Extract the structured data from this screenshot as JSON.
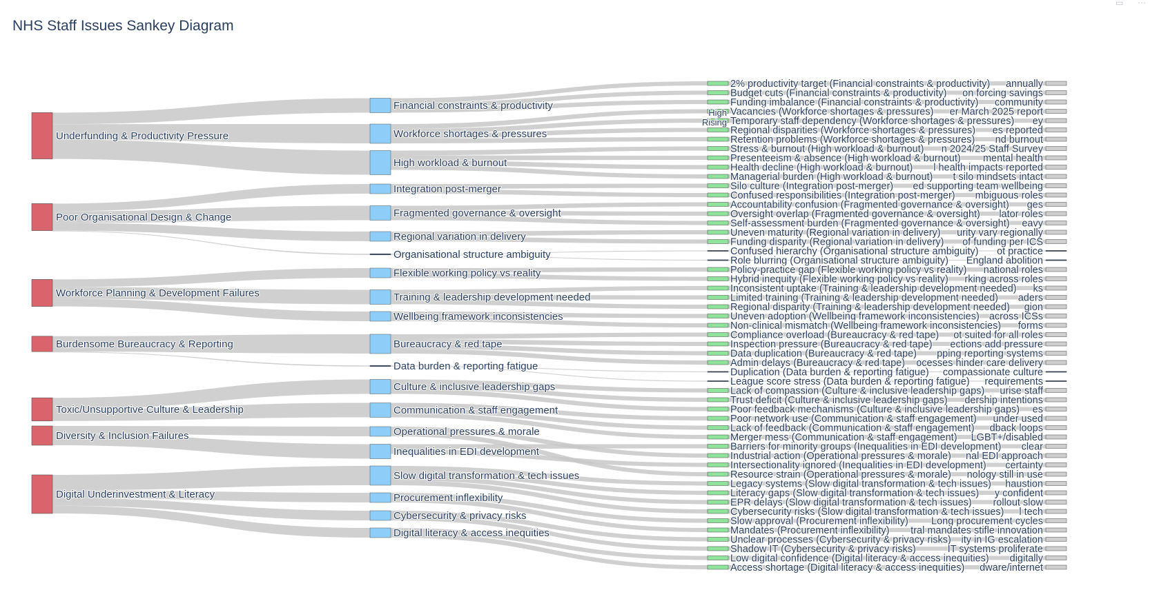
{
  "title": "NHS Staff Issues Sankey Diagram",
  "colors": {
    "root": "#d9646b",
    "category": "#8ecdf7",
    "leaf": "#8fe39a",
    "end": "#cfcfcf",
    "link": "#c8c8c8",
    "text": "#2a3f5f"
  },
  "toolbar": {
    "icons": [
      "zoom-icon",
      "more-icon"
    ]
  },
  "chart_data": {
    "type": "sankey",
    "roots": [
      {
        "id": "r1",
        "label": "Underfunding & Productivity Pressure"
      },
      {
        "id": "r2",
        "label": "Poor Organisational Design & Change"
      },
      {
        "id": "r3",
        "label": "Workforce Planning & Development Failures"
      },
      {
        "id": "r4",
        "label": "Burdensome Bureaucracy & Reporting"
      },
      {
        "id": "r5",
        "label": "Toxic/Unsupportive Culture & Leadership"
      },
      {
        "id": "r6",
        "label": "Diversity & Inclusion Failures"
      },
      {
        "id": "r7",
        "label": "Digital Underinvestment & Literacy"
      }
    ],
    "categories": [
      {
        "id": "c1",
        "label": "Financial constraints & productivity",
        "root": "r1",
        "value": 3
      },
      {
        "id": "c2",
        "label": "Workforce shortages & pressures",
        "root": "r1",
        "value": 4
      },
      {
        "id": "c3",
        "label": "High workload & burnout",
        "root": "r1",
        "value": 5
      },
      {
        "id": "c4",
        "label": "Integration post-merger",
        "root": "r2",
        "value": 2
      },
      {
        "id": "c5",
        "label": "Fragmented governance & oversight",
        "root": "r2",
        "value": 3
      },
      {
        "id": "c6",
        "label": "Regional variation in delivery",
        "root": "r2",
        "value": 2
      },
      {
        "id": "c7",
        "label": "Organisational structure ambiguity",
        "root": "r2",
        "value": 0
      },
      {
        "id": "c8",
        "label": "Flexible working policy vs reality",
        "root": "r3",
        "value": 2
      },
      {
        "id": "c9",
        "label": "Training & leadership development needed",
        "root": "r3",
        "value": 3
      },
      {
        "id": "c10",
        "label": "Wellbeing framework inconsistencies",
        "root": "r3",
        "value": 2
      },
      {
        "id": "c11",
        "label": "Bureaucracy & red tape",
        "root": "r4",
        "value": 4
      },
      {
        "id": "c12",
        "label": "Data burden & reporting fatigue",
        "root": "r4",
        "value": 0
      },
      {
        "id": "c13",
        "label": "Culture & inclusive leadership gaps",
        "root": "r5",
        "value": 3
      },
      {
        "id": "c14",
        "label": "Communication & staff engagement",
        "root": "r5",
        "value": 3
      },
      {
        "id": "c15",
        "label": "Operational pressures & morale",
        "root": "r6",
        "value": 2
      },
      {
        "id": "c16",
        "label": "Inequalities in EDI development",
        "root": "r6",
        "value": 3
      },
      {
        "id": "c17",
        "label": "Slow digital transformation & tech issues",
        "root": "r7",
        "value": 4
      },
      {
        "id": "c18",
        "label": "Procurement inflexibility",
        "root": "r7",
        "value": 2
      },
      {
        "id": "c19",
        "label": "Cybersecurity & privacy risks",
        "root": "r7",
        "value": 2
      },
      {
        "id": "c20",
        "label": "Digital literacy & access inequities",
        "root": "r7",
        "value": 2
      }
    ],
    "leaves": [
      {
        "label": "2% productivity target (Financial constraints & productivity)",
        "cat": "c1",
        "value": 1,
        "tail": "annually"
      },
      {
        "label": "Budget cuts (Financial constraints & productivity)",
        "cat": "c1",
        "value": 1,
        "tail": "on forcing savings"
      },
      {
        "label": "Funding imbalance (Financial constraints & productivity)",
        "cat": "c1",
        "value": 1,
        "tail": "community"
      },
      {
        "label": "Vacancies (Workforce shortages & pressures)",
        "cat": "c2",
        "value": 1,
        "tail": "er March 2025 report"
      },
      {
        "label": "Temporary staff dependency (Workforce shortages & pressures)",
        "cat": "c2",
        "value": 1,
        "tail": "ey"
      },
      {
        "label": "Regional disparities (Workforce shortages & pressures)",
        "cat": "c2",
        "value": 1,
        "tail": "es reported"
      },
      {
        "label": "Retention problems (Workforce shortages & pressures)",
        "cat": "c2",
        "value": 1,
        "tail": "nd burnout"
      },
      {
        "label": "Stress & burnout (High workload & burnout)",
        "cat": "c3",
        "value": 1,
        "tail": "n 2024/25 Staff Survey"
      },
      {
        "label": "Presenteeism & absence (High workload & burnout)",
        "cat": "c3",
        "value": 1,
        "tail": "mental health"
      },
      {
        "label": "Health decline (High workload & burnout)",
        "cat": "c3",
        "value": 1,
        "tail": "l health impacts reported"
      },
      {
        "label": "Managerial burden (High workload & burnout)",
        "cat": "c3",
        "value": 1,
        "tail": "t silo mindsets intact"
      },
      {
        "label": "Silo culture (Integration post-merger)",
        "cat": "c4",
        "value": 1,
        "tail": "ed supporting team wellbeing"
      },
      {
        "label": "Confused responsibilities (Integration post-merger)",
        "cat": "c4",
        "value": 1,
        "tail": "mbiguous roles"
      },
      {
        "label": "Accountability confusion (Fragmented governance & oversight)",
        "cat": "c5",
        "value": 1,
        "tail": "ges"
      },
      {
        "label": "Oversight overlap (Fragmented governance & oversight)",
        "cat": "c5",
        "value": 1,
        "tail": "lator roles"
      },
      {
        "label": "Self-assessment burden (Fragmented governance & oversight)",
        "cat": "c5",
        "value": 1,
        "tail": "eavy"
      },
      {
        "label": "Uneven maturity (Regional variation in delivery)",
        "cat": "c6",
        "value": 1,
        "tail": "urity vary regionally"
      },
      {
        "label": "Funding disparity (Regional variation in delivery)",
        "cat": "c6",
        "value": 1,
        "tail": "of funding per ICS"
      },
      {
        "label": "Confused hierarchy (Organisational structure ambiguity)",
        "cat": "c7",
        "value": 0,
        "tail": "ot practice"
      },
      {
        "label": "Role blurring (Organisational structure ambiguity)",
        "cat": "c7",
        "value": 0,
        "tail": "England abolition"
      },
      {
        "label": "Policy-practice gap (Flexible working policy vs reality)",
        "cat": "c8",
        "value": 1,
        "tail": "national roles"
      },
      {
        "label": "Hybrid inequity (Flexible working policy vs reality)",
        "cat": "c8",
        "value": 1,
        "tail": "rking across roles"
      },
      {
        "label": "Inconsistent uptake (Training & leadership development needed)",
        "cat": "c9",
        "value": 1,
        "tail": "ks"
      },
      {
        "label": "Limited training (Training & leadership development needed)",
        "cat": "c9",
        "value": 1,
        "tail": "aders"
      },
      {
        "label": "Regional disparity (Training & leadership development needed)",
        "cat": "c9",
        "value": 1,
        "tail": "gion"
      },
      {
        "label": "Uneven adoption (Wellbeing framework inconsistencies)",
        "cat": "c10",
        "value": 1,
        "tail": "across ICSs"
      },
      {
        "label": "Non-clinical mismatch (Wellbeing framework inconsistencies)",
        "cat": "c10",
        "value": 1,
        "tail": "forms"
      },
      {
        "label": "Compliance overload (Bureaucracy & red tape)",
        "cat": "c11",
        "value": 1,
        "tail": "ot suited for all roles"
      },
      {
        "label": "Inspection pressure (Bureaucracy & red tape)",
        "cat": "c11",
        "value": 1,
        "tail": "ections add pressure"
      },
      {
        "label": "Data duplication (Bureaucracy & red tape)",
        "cat": "c11",
        "value": 1,
        "tail": "pping reporting systems"
      },
      {
        "label": "Admin delays (Bureaucracy & red tape)",
        "cat": "c11",
        "value": 1,
        "tail": "ocesses hinder care delivery"
      },
      {
        "label": "Duplication (Data burden & reporting fatigue)",
        "cat": "c12",
        "value": 0,
        "tail": "compassionate culture"
      },
      {
        "label": "League score stress (Data burden & reporting fatigue)",
        "cat": "c12",
        "value": 0,
        "tail": "requirements"
      },
      {
        "label": "Lack of compassion (Culture & inclusive leadership gaps)",
        "cat": "c13",
        "value": 1,
        "tail": "urise staff"
      },
      {
        "label": "Trust deficit (Culture & inclusive leadership gaps)",
        "cat": "c13",
        "value": 1,
        "tail": "dership intentions"
      },
      {
        "label": "Poor feedback mechanisms (Culture & inclusive leadership gaps)",
        "cat": "c13",
        "value": 1,
        "tail": "es"
      },
      {
        "label": "Poor network use (Communication & staff engagement)",
        "cat": "c14",
        "value": 1,
        "tail": "under used"
      },
      {
        "label": "Lack of feedback (Communication & staff engagement)",
        "cat": "c14",
        "value": 1,
        "tail": "dback loops"
      },
      {
        "label": "Merger mess (Communication & staff engagement)",
        "cat": "c14",
        "value": 1,
        "tail": "LGBT+/disabled"
      },
      {
        "label": "Barriers for minority groups (Inequalities in EDI development)",
        "cat": "c16",
        "value": 1,
        "tail": "clear"
      },
      {
        "label": "Industrial action (Operational pressures & morale)",
        "cat": "c15",
        "value": 1,
        "tail": "nal EDI approach"
      },
      {
        "label": "Intersectionality ignored (Inequalities in EDI development)",
        "cat": "c16",
        "value": 1,
        "tail": "certainty"
      },
      {
        "label": "Resource strain (Operational pressures & morale)",
        "cat": "c15",
        "value": 1,
        "tail": "nology still in use"
      },
      {
        "label": "Legacy systems (Slow digital transformation & tech issues)",
        "cat": "c17",
        "value": 1,
        "tail": "haustion"
      },
      {
        "label": "Literacy gaps (Slow digital transformation & tech issues)",
        "cat": "c17",
        "value": 1,
        "tail": "y confident"
      },
      {
        "label": "EPR delays (Slow digital transformation & tech issues)",
        "cat": "c17",
        "value": 1,
        "tail": "rollout slow"
      },
      {
        "label": "Cybersecurity risks (Slow digital transformation & tech issues)",
        "cat": "c17",
        "value": 1,
        "tail": "l tech"
      },
      {
        "label": "Slow approval (Procurement inflexibility)",
        "cat": "c18",
        "value": 1,
        "tail": "Long procurement cycles"
      },
      {
        "label": "Mandates (Procurement inflexibility)",
        "cat": "c18",
        "value": 1,
        "tail": "tral mandates stifle innovation"
      },
      {
        "label": "Unclear processes (Cybersecurity & privacy risks)",
        "cat": "c19",
        "value": 1,
        "tail": "ity in IG escalation"
      },
      {
        "label": "Shadow IT (Cybersecurity & privacy risks)",
        "cat": "c19",
        "value": 1,
        "tail": "IT systems proliferate"
      },
      {
        "label": "Low digital confidence (Digital literacy & access inequities)",
        "cat": "c20",
        "value": 1,
        "tail": "digitally"
      },
      {
        "label": "Access shortage (Digital literacy & access inequities)",
        "cat": "c20",
        "value": 1,
        "tail": "dware/internet"
      }
    ],
    "overflow_labels": [
      "High",
      "Rising"
    ]
  }
}
